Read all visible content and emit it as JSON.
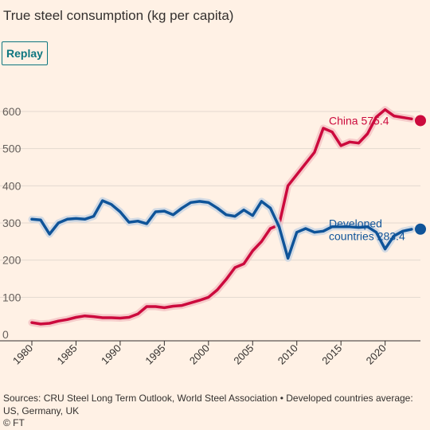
{
  "title": "True steel consumption (kg per capita)",
  "replay_label": "Replay",
  "source": "Sources: CRU Steel Long Term Outlook, World Steel Association • Developed countries average: US, Germany, UK",
  "credit": "© FT",
  "colors": {
    "china": "#CC0A3D",
    "developed": "#0F5499",
    "halo_china": "#F5C4C6",
    "halo_developed": "#CBD6E3",
    "grid": "#E3D8CF",
    "axis": "#33302E",
    "background": "#FFF1E5",
    "accent": "#0D7680"
  },
  "chart_data": {
    "type": "line",
    "title": "True steel consumption (kg per capita)",
    "xlabel": "",
    "ylabel": "",
    "xlim": [
      1980,
      2024
    ],
    "ylim": [
      0,
      600
    ],
    "x_ticks": [
      "1980",
      "1985",
      "1990",
      "1995",
      "2000",
      "2005",
      "2010",
      "2015",
      "2020"
    ],
    "y_ticks": [
      "0",
      "100",
      "200",
      "300",
      "400",
      "500",
      "600"
    ],
    "grid": "horizontal",
    "legend": "direct labels at line ends",
    "series": [
      {
        "name": "China",
        "end_label": "China 575.4",
        "color": "#CC0A3D",
        "x": [
          1980,
          1981,
          1982,
          1983,
          1984,
          1985,
          1986,
          1987,
          1988,
          1989,
          1990,
          1991,
          1992,
          1993,
          1994,
          1995,
          1996,
          1997,
          1998,
          1999,
          2000,
          2001,
          2002,
          2003,
          2004,
          2005,
          2006,
          2007,
          2008,
          2009,
          2010,
          2011,
          2012,
          2013,
          2014,
          2015,
          2016,
          2017,
          2018,
          2019,
          2020,
          2021,
          2022,
          2023
        ],
        "values": [
          32,
          28,
          30,
          36,
          40,
          46,
          50,
          48,
          45,
          45,
          44,
          46,
          55,
          75,
          75,
          72,
          76,
          78,
          85,
          92,
          100,
          120,
          148,
          180,
          190,
          225,
          250,
          285,
          295,
          400,
          430,
          460,
          490,
          555,
          545,
          508,
          518,
          515,
          540,
          585,
          605,
          588,
          584,
          580
        ]
      },
      {
        "name": "Developed countries",
        "end_label": "Developed countries 283.4",
        "end_label_lines": [
          "Developed",
          "countries 283.4"
        ],
        "color": "#0F5499",
        "x": [
          1980,
          1981,
          1982,
          1983,
          1984,
          1985,
          1986,
          1987,
          1988,
          1989,
          1990,
          1991,
          1992,
          1993,
          1994,
          1995,
          1996,
          1997,
          1998,
          1999,
          2000,
          2001,
          2002,
          2003,
          2004,
          2005,
          2006,
          2007,
          2008,
          2009,
          2010,
          2011,
          2012,
          2013,
          2014,
          2015,
          2016,
          2017,
          2018,
          2019,
          2020,
          2021,
          2022,
          2023
        ],
        "values": [
          310,
          308,
          270,
          300,
          310,
          312,
          310,
          318,
          360,
          350,
          330,
          302,
          305,
          298,
          330,
          332,
          322,
          340,
          355,
          358,
          355,
          340,
          322,
          318,
          335,
          320,
          358,
          340,
          290,
          205,
          275,
          285,
          275,
          278,
          290,
          290,
          290,
          288,
          290,
          275,
          230,
          265,
          278,
          283
        ]
      }
    ],
    "end_markers": [
      {
        "series": "China",
        "x": 2024,
        "y": 575.4
      },
      {
        "series": "Developed countries",
        "x": 2024,
        "y": 283.4
      }
    ]
  }
}
